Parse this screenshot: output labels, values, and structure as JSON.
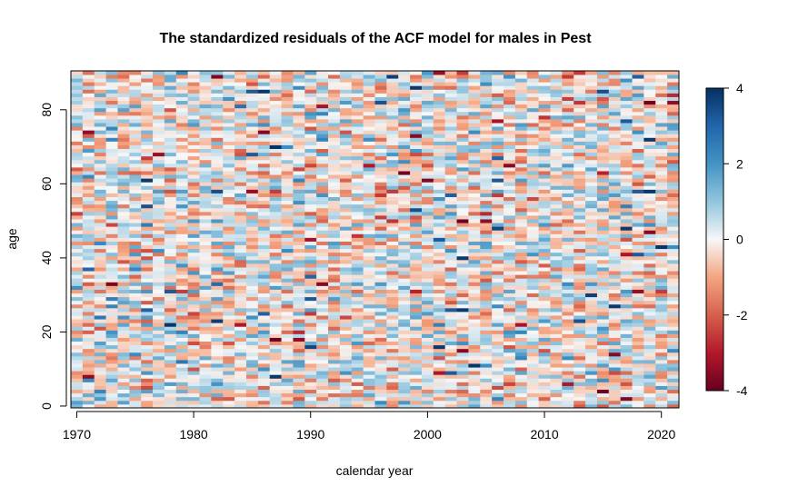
{
  "chart_data": {
    "type": "heatmap",
    "title": "The standardized residuals of the ACF model for males in Pest",
    "xlabel": "calendar year",
    "ylabel": "age",
    "x_range": [
      1970,
      2021
    ],
    "y_range": [
      0,
      90
    ],
    "x_ticks": [
      "1970",
      "1980",
      "1990",
      "2000",
      "2010",
      "2020"
    ],
    "y_ticks": [
      "0",
      "20",
      "40",
      "60",
      "80"
    ],
    "color_scale": {
      "min": -4,
      "max": 4,
      "ticks": [
        "-4",
        "-2",
        "0",
        "2",
        "4"
      ],
      "palette": "RdBu",
      "low_color": "#67001f",
      "mid_color": "#f7f7f7",
      "high_color": "#053061"
    },
    "cell_values_note": "approximate field of standardized residuals, mostly within [-2, 2] with occasional extremes near ±4"
  }
}
